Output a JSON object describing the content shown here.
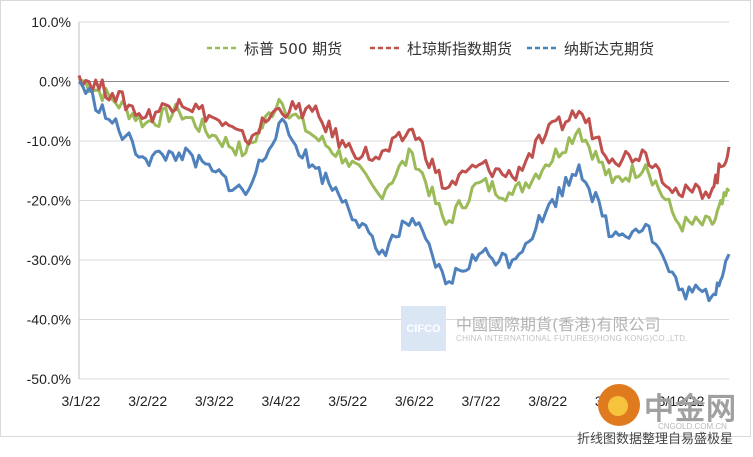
{
  "chart_data": {
    "type": "line",
    "title": "",
    "xlabel": "",
    "ylabel": "",
    "ylim": [
      -50,
      10
    ],
    "yticks": [
      10,
      0,
      -10,
      -20,
      -30,
      -40,
      -50
    ],
    "ytick_labels": [
      "10.0%",
      "0.0%",
      "-10.0%",
      "-20.0%",
      "-30.0%",
      "-40.0%",
      "-50.0%"
    ],
    "x_positions": [
      0,
      1,
      2,
      3,
      4,
      5,
      6,
      7,
      8,
      9
    ],
    "x_labels": [
      "3/1/22",
      "3/2/22",
      "3/3/22",
      "3/4/22",
      "3/5/22",
      "3/6/22",
      "3/7/22",
      "3/8/22",
      "3/9/22",
      "3/10/22"
    ],
    "x_range": [
      0,
      9.75
    ],
    "grid": "horizontal",
    "legend_position": "top-right",
    "series": [
      {
        "name": "标普 500 期货",
        "color": "#9bbb59",
        "x": [
          0,
          0.5,
          1.0,
          1.5,
          2.0,
          2.5,
          3.0,
          3.5,
          4.0,
          4.5,
          5.0,
          5.5,
          6.0,
          6.5,
          7.0,
          7.5,
          8.0,
          8.5,
          9.0,
          9.5,
          9.75
        ],
        "values": [
          0.5,
          -3,
          -7,
          -5,
          -9,
          -12,
          -3,
          -9,
          -13,
          -19,
          -12,
          -24,
          -17,
          -19,
          -14,
          -8,
          -17,
          -14,
          -24,
          -24,
          -18.5
        ]
      },
      {
        "name": "杜琼斯指数期货",
        "color": "#c0504d",
        "x": [
          0,
          0.5,
          1.0,
          1.5,
          2.0,
          2.5,
          3.0,
          3.5,
          4.0,
          4.5,
          5.0,
          5.5,
          6.0,
          6.5,
          7.0,
          7.5,
          8.0,
          8.5,
          9.0,
          9.5,
          9.75
        ],
        "values": [
          1,
          -2,
          -6,
          -3,
          -6,
          -10,
          -4.5,
          -5,
          -11,
          -13,
          -8,
          -18,
          -14,
          -16,
          -9,
          -5,
          -13,
          -12,
          -19,
          -18,
          -11
        ]
      },
      {
        "name": "纳斯达克期货",
        "color": "#4f81bd",
        "x": [
          0,
          0.5,
          1.0,
          1.5,
          2.0,
          2.5,
          3.0,
          3.5,
          4.0,
          4.5,
          5.0,
          5.5,
          6.0,
          6.5,
          7.0,
          7.5,
          8.0,
          8.5,
          9.0,
          9.5,
          9.75
        ],
        "values": [
          0,
          -7,
          -13,
          -12,
          -15,
          -19,
          -7,
          -14,
          -20,
          -29,
          -23,
          -34,
          -29,
          -30,
          -22,
          -14,
          -26,
          -24,
          -35,
          -36,
          -29
        ]
      }
    ]
  },
  "watermark": {
    "logo_text": "CIFCO",
    "name_cn": "中國國際期貨(香港)有限公司",
    "name_en": "CHINA INTERNATIONAL FUTURES(HONG KONG)CO.,LTD."
  },
  "site_logo": {
    "name": "中金网",
    "url": "CNGOLD.COM.CN"
  },
  "caption": "折线图数据整理自易盛极星"
}
